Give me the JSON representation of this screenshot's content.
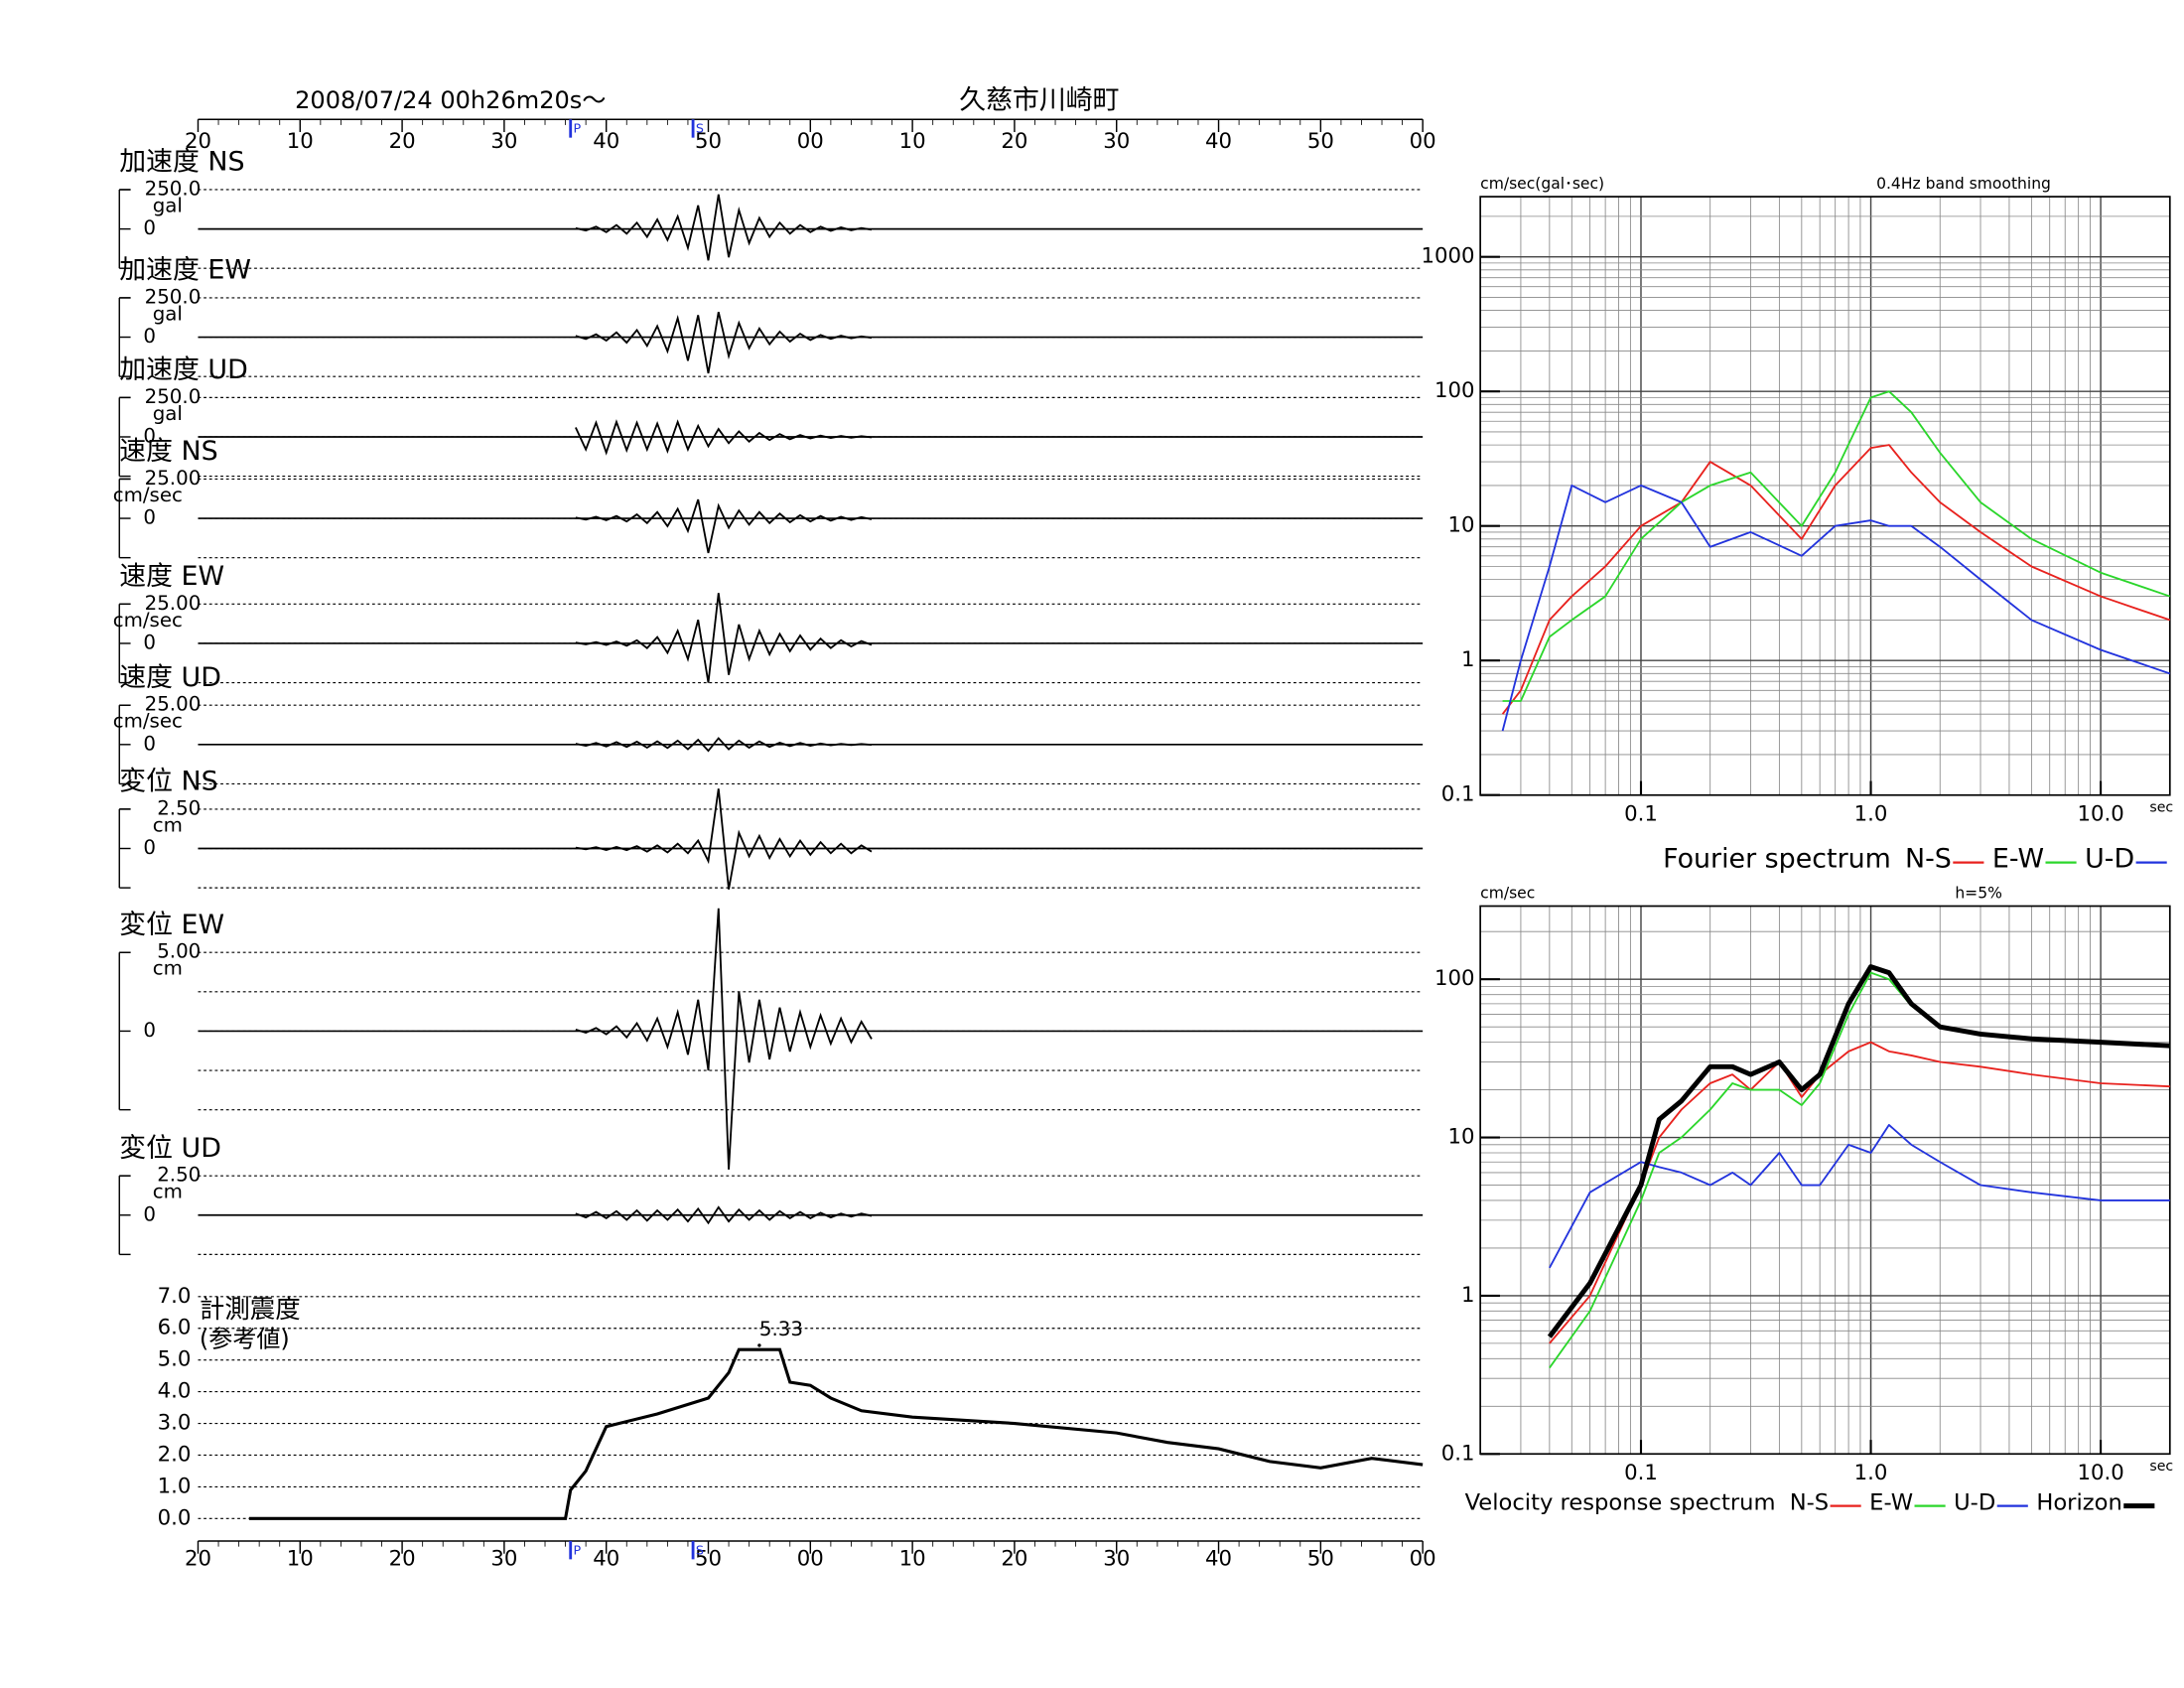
{
  "header": {
    "datetime": "2008/07/24  00h26m20s〜",
    "place": "久慈市川崎町"
  },
  "time_axis": {
    "xlim": [
      0,
      120
    ],
    "xticks": [
      {
        "value": 0,
        "label": "20"
      },
      10,
      20,
      30,
      40,
      50,
      {
        "value": 60,
        "label": "00"
      },
      {
        "value": 70,
        "label": "10"
      },
      {
        "value": 80,
        "label": "20"
      },
      {
        "value": 90,
        "label": "30"
      },
      {
        "value": 100,
        "label": "40"
      },
      {
        "value": 110,
        "label": "50"
      },
      {
        "value": 120,
        "label": "00"
      }
    ],
    "p_time": 36.5,
    "p_label": "P",
    "s_time": 48.5,
    "s_label": "S"
  },
  "chart_data": [
    {
      "type": "line",
      "title": "加速度 NS",
      "unit": "gal",
      "ylim": [
        -250,
        250
      ],
      "yticks": [
        {
          "value": 250,
          "label": "250.0"
        },
        0
      ],
      "x": [
        37,
        38,
        39,
        40,
        41,
        42,
        43,
        44,
        45,
        46,
        47,
        48,
        49,
        50,
        51,
        52,
        53,
        54,
        55,
        56,
        57,
        58,
        59,
        60,
        61,
        62,
        63,
        64,
        65,
        66
      ],
      "values": [
        5,
        -10,
        15,
        -20,
        25,
        -30,
        40,
        -50,
        60,
        -70,
        80,
        -120,
        150,
        -200,
        220,
        -180,
        120,
        -90,
        70,
        -50,
        40,
        -30,
        25,
        -20,
        15,
        -12,
        10,
        -8,
        6,
        -5
      ]
    },
    {
      "type": "line",
      "title": "加速度 EW",
      "unit": "gal",
      "ylim": [
        -250,
        250
      ],
      "yticks": [
        {
          "value": 250,
          "label": "250.0"
        },
        0
      ],
      "x": [
        37,
        38,
        39,
        40,
        41,
        42,
        43,
        44,
        45,
        46,
        47,
        48,
        49,
        50,
        51,
        52,
        53,
        54,
        55,
        56,
        57,
        58,
        59,
        60,
        61,
        62,
        63,
        64,
        65,
        66
      ],
      "values": [
        8,
        -12,
        18,
        -22,
        30,
        -35,
        45,
        -55,
        70,
        -90,
        120,
        -150,
        140,
        -230,
        160,
        -120,
        90,
        -70,
        55,
        -45,
        35,
        -28,
        22,
        -18,
        14,
        -11,
        9,
        -7,
        5,
        -4
      ]
    },
    {
      "type": "line",
      "title": "加速度 UD",
      "unit": "gal",
      "ylim": [
        -250,
        250
      ],
      "yticks": [
        {
          "value": 250,
          "label": "250.0"
        },
        0
      ],
      "x": [
        37,
        38,
        39,
        40,
        41,
        42,
        43,
        44,
        45,
        46,
        47,
        48,
        49,
        50,
        51,
        52,
        53,
        54,
        55,
        56,
        57,
        58,
        59,
        60,
        61,
        62,
        63,
        64,
        65,
        66
      ],
      "values": [
        60,
        -80,
        90,
        -100,
        95,
        -85,
        90,
        -80,
        85,
        -90,
        95,
        -80,
        70,
        -60,
        50,
        -40,
        35,
        -30,
        25,
        -20,
        18,
        -15,
        12,
        -10,
        8,
        -7,
        6,
        -5,
        4,
        -3
      ]
    },
    {
      "type": "line",
      "title": "速度 NS",
      "unit": "cm/sec",
      "ylim": [
        -25,
        25
      ],
      "yticks": [
        {
          "value": 25,
          "label": "25.00"
        },
        0
      ],
      "x": [
        37,
        38,
        39,
        40,
        41,
        42,
        43,
        44,
        45,
        46,
        47,
        48,
        49,
        50,
        51,
        52,
        53,
        54,
        55,
        56,
        57,
        58,
        59,
        60,
        61,
        62,
        63,
        64,
        65,
        66
      ],
      "values": [
        0.5,
        -0.8,
        1,
        -1.2,
        1.5,
        -2,
        2.5,
        -3,
        4,
        -5,
        6,
        -8,
        12,
        -22,
        8,
        -6,
        5,
        -4,
        4,
        -3,
        3,
        -2.5,
        2,
        -2,
        1.5,
        -1.5,
        1,
        -1,
        0.8,
        -0.6
      ]
    },
    {
      "type": "line",
      "title": "速度 EW",
      "unit": "cm/sec",
      "ylim": [
        -25,
        25
      ],
      "yticks": [
        {
          "value": 25,
          "label": "25.00"
        },
        0
      ],
      "x": [
        37,
        38,
        39,
        40,
        41,
        42,
        43,
        44,
        45,
        46,
        47,
        48,
        49,
        50,
        51,
        52,
        53,
        54,
        55,
        56,
        57,
        58,
        59,
        60,
        61,
        62,
        63,
        64,
        65,
        66
      ],
      "values": [
        0.5,
        -0.6,
        0.8,
        -1,
        1.2,
        -1.5,
        2,
        -3,
        4,
        -6,
        8,
        -10,
        15,
        -25,
        32,
        -20,
        12,
        -10,
        8,
        -7,
        6,
        -5,
        5,
        -4,
        3,
        -3,
        2,
        -2,
        1.5,
        -1
      ]
    },
    {
      "type": "line",
      "title": "速度 UD",
      "unit": "cm/sec",
      "ylim": [
        -25,
        25
      ],
      "yticks": [
        {
          "value": 25,
          "label": "25.00"
        },
        0
      ],
      "x": [
        37,
        38,
        39,
        40,
        41,
        42,
        43,
        44,
        45,
        46,
        47,
        48,
        49,
        50,
        51,
        52,
        53,
        54,
        55,
        56,
        57,
        58,
        59,
        60,
        61,
        62,
        63,
        64,
        65,
        66
      ],
      "values": [
        0.5,
        -0.8,
        1,
        -1.2,
        1.5,
        -1.5,
        1.8,
        -2,
        2,
        -2.2,
        2.5,
        -3,
        3,
        -4,
        4,
        -3,
        2.5,
        -2,
        2,
        -1.5,
        1.2,
        -1,
        1,
        -0.8,
        0.6,
        -0.5,
        0.4,
        -0.3,
        0.3,
        -0.2
      ]
    },
    {
      "type": "line",
      "title": "変位 NS",
      "unit": "cm",
      "ylim": [
        -2.5,
        2.5
      ],
      "yticks": [
        {
          "value": 2.5,
          "label": "2.50"
        },
        0
      ],
      "x": [
        37,
        38,
        39,
        40,
        41,
        42,
        43,
        44,
        45,
        46,
        47,
        48,
        49,
        50,
        51,
        52,
        53,
        54,
        55,
        56,
        57,
        58,
        59,
        60,
        61,
        62,
        63,
        64,
        65,
        66
      ],
      "values": [
        0.05,
        -0.05,
        0.08,
        -0.1,
        0.1,
        -0.1,
        0.15,
        -0.2,
        0.2,
        -0.25,
        0.3,
        -0.3,
        0.5,
        -0.8,
        3.8,
        -2.6,
        1,
        -0.5,
        0.8,
        -0.6,
        0.6,
        -0.5,
        0.5,
        -0.4,
        0.4,
        -0.3,
        0.3,
        -0.3,
        0.2,
        -0.2
      ]
    },
    {
      "type": "line",
      "title": "変位 EW",
      "unit": "cm",
      "ylim": [
        -5,
        5
      ],
      "yticks": [
        {
          "value": 5,
          "label": "5.00"
        },
        0
      ],
      "x": [
        37,
        38,
        39,
        40,
        41,
        42,
        43,
        44,
        45,
        46,
        47,
        48,
        49,
        50,
        51,
        52,
        53,
        54,
        55,
        56,
        57,
        58,
        59,
        60,
        61,
        62,
        63,
        64,
        65,
        66
      ],
      "values": [
        0.1,
        -0.1,
        0.2,
        -0.2,
        0.3,
        -0.4,
        0.5,
        -0.6,
        0.8,
        -1,
        1.2,
        -1.5,
        2,
        -2.5,
        7.8,
        -8.8,
        2.5,
        -2,
        2,
        -1.8,
        1.5,
        -1.3,
        1.2,
        -1,
        1,
        -0.8,
        0.8,
        -0.7,
        0.6,
        -0.5
      ]
    },
    {
      "type": "line",
      "title": "変位 UD",
      "unit": "cm",
      "ylim": [
        -2.5,
        2.5
      ],
      "yticks": [
        {
          "value": 2.5,
          "label": "2.50"
        },
        0
      ],
      "x": [
        37,
        38,
        39,
        40,
        41,
        42,
        43,
        44,
        45,
        46,
        47,
        48,
        49,
        50,
        51,
        52,
        53,
        54,
        55,
        56,
        57,
        58,
        59,
        60,
        61,
        62,
        63,
        64,
        65,
        66
      ],
      "values": [
        0.1,
        -0.15,
        0.2,
        -0.2,
        0.25,
        -0.3,
        0.3,
        -0.35,
        0.3,
        -0.3,
        0.35,
        -0.4,
        0.4,
        -0.5,
        0.5,
        -0.4,
        0.35,
        -0.3,
        0.3,
        -0.3,
        0.25,
        -0.2,
        0.2,
        -0.2,
        0.15,
        -0.15,
        0.1,
        -0.1,
        0.1,
        -0.05
      ]
    },
    {
      "type": "line",
      "title": "計測震度",
      "subtitle": "(参考値)",
      "ylim": [
        0,
        7
      ],
      "yticks": [
        {
          "value": 0,
          "label": "0.0"
        },
        {
          "value": 1,
          "label": "1.0"
        },
        {
          "value": 2,
          "label": "2.0"
        },
        {
          "value": 3,
          "label": "3.0"
        },
        {
          "value": 4,
          "label": "4.0"
        },
        {
          "value": 5,
          "label": "5.0"
        },
        {
          "value": 6,
          "label": "6.0"
        },
        {
          "value": 7,
          "label": "7.0"
        }
      ],
      "x": [
        5,
        36,
        36.5,
        37,
        38,
        40,
        45,
        50,
        52,
        53,
        57,
        58,
        60,
        62,
        65,
        70,
        80,
        90,
        95,
        100,
        105,
        110,
        115,
        120
      ],
      "values": [
        0,
        0,
        0.9,
        1.1,
        1.5,
        2.9,
        3.3,
        3.8,
        4.6,
        5.33,
        5.33,
        4.3,
        4.2,
        3.8,
        3.4,
        3.2,
        3.0,
        2.7,
        2.4,
        2.2,
        1.8,
        1.6,
        1.9,
        1.7
      ],
      "annotations": [
        {
          "x": 55,
          "value": 5.33,
          "label": "5.33"
        }
      ]
    },
    {
      "type": "line",
      "log_x": true,
      "log_y": true,
      "legend_title": "Fourier spectrum",
      "y_unit": "cm/sec(gal･sec)",
      "note": "0.4Hz band smoothing",
      "x_unit": "sec",
      "xlim": [
        0.02,
        20
      ],
      "ylim": [
        0.1,
        2800
      ],
      "xticks": [
        0.1,
        {
          "value": 1,
          "label": "1.0"
        },
        {
          "value": 10,
          "label": "10.0"
        }
      ],
      "yticks": [
        0.1,
        1,
        10,
        100,
        1000
      ],
      "x": [
        0.025,
        0.03,
        0.04,
        0.05,
        0.07,
        0.1,
        0.15,
        0.2,
        0.3,
        0.5,
        0.7,
        1.0,
        1.2,
        1.5,
        2,
        3,
        5,
        10,
        20
      ],
      "series": [
        {
          "name": "N-S",
          "color": "#e8221e",
          "values": [
            0.4,
            0.6,
            2,
            3,
            5,
            10,
            15,
            30,
            20,
            8,
            20,
            38,
            40,
            25,
            15,
            9,
            5,
            3,
            2
          ]
        },
        {
          "name": "E-W",
          "color": "#2bd62b",
          "values": [
            0.5,
            0.5,
            1.5,
            2,
            3,
            8,
            15,
            20,
            25,
            10,
            25,
            90,
            100,
            70,
            35,
            15,
            8,
            4.5,
            3
          ]
        },
        {
          "name": "U-D",
          "color": "#2233dd",
          "values": [
            0.3,
            1,
            5,
            20,
            15,
            20,
            15,
            7,
            9,
            6,
            10,
            11,
            10,
            10,
            7,
            4,
            2,
            1.2,
            0.8
          ]
        }
      ]
    },
    {
      "type": "line",
      "log_x": true,
      "log_y": true,
      "legend_title": "Velocity response spectrum",
      "y_unit": "cm/sec",
      "note": "h=5%",
      "x_unit": "sec",
      "xlim": [
        0.02,
        20
      ],
      "ylim": [
        0.1,
        290
      ],
      "xticks": [
        0.1,
        {
          "value": 1,
          "label": "1.0"
        },
        {
          "value": 10,
          "label": "10.0"
        }
      ],
      "yticks": [
        0.1,
        1,
        10,
        100
      ],
      "x": [
        0.04,
        0.06,
        0.1,
        0.12,
        0.15,
        0.2,
        0.25,
        0.3,
        0.4,
        0.5,
        0.6,
        0.8,
        1.0,
        1.2,
        1.5,
        2,
        3,
        5,
        10,
        20
      ],
      "series": [
        {
          "name": "N-S",
          "color": "#e8221e",
          "values": [
            0.5,
            1.0,
            5,
            10,
            15,
            22,
            25,
            20,
            30,
            18,
            25,
            35,
            40,
            35,
            33,
            30,
            28,
            25,
            22,
            21
          ]
        },
        {
          "name": "E-W",
          "color": "#2bd62b",
          "values": [
            0.35,
            0.8,
            4,
            8,
            10,
            15,
            22,
            20,
            20,
            16,
            22,
            60,
            110,
            100,
            68,
            50,
            45,
            42,
            40,
            38
          ]
        },
        {
          "name": "U-D",
          "color": "#2233dd",
          "values": [
            1.5,
            4.5,
            7,
            6.5,
            6,
            5,
            6,
            5,
            8,
            5,
            5,
            9,
            8,
            12,
            9,
            7,
            5,
            4.5,
            4,
            4
          ]
        },
        {
          "name": "Horizon",
          "color": "#000000",
          "line_width": 3.5,
          "values": [
            0.55,
            1.2,
            5,
            13,
            17,
            28,
            28,
            25,
            30,
            20,
            25,
            70,
            120,
            110,
            70,
            50,
            45,
            42,
            40,
            38
          ]
        }
      ]
    }
  ]
}
